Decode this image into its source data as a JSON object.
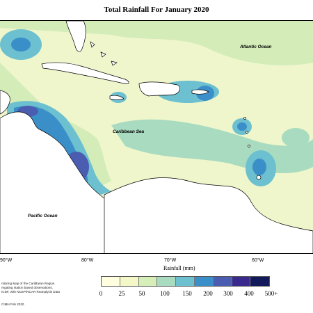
{
  "title": "Total Rainfall For January 2020",
  "map_labels": {
    "atlantic": "Atlantic Ocean",
    "caribbean": "Caribbean Sea",
    "pacific": "Pacific Ocean"
  },
  "longitude_labels": [
    "90°W",
    "80°W",
    "70°W",
    "60°W"
  ],
  "legend": {
    "title": "Rainfall (mm)",
    "ticks": [
      "0",
      "25",
      "50",
      "100",
      "150",
      "200",
      "300",
      "400",
      "500+"
    ],
    "colors": [
      "#ffffe0",
      "#f4f8c9",
      "#d6eeb8",
      "#a9dbc0",
      "#6cc0cf",
      "#3b8fc9",
      "#4a5db0",
      "#3a2a8e",
      "#131a5c"
    ]
  },
  "colors": {
    "land": "#ffffff",
    "coast": "#000000",
    "base_rain": "#f3f8cf"
  },
  "credit_lines": [
    "nitoring Map of the Caribbean Region.",
    "regating station based observations,",
    "ICDF, with NCEP/NCAR Reanalysis Data",
    "CIMH Feb 2020"
  ]
}
